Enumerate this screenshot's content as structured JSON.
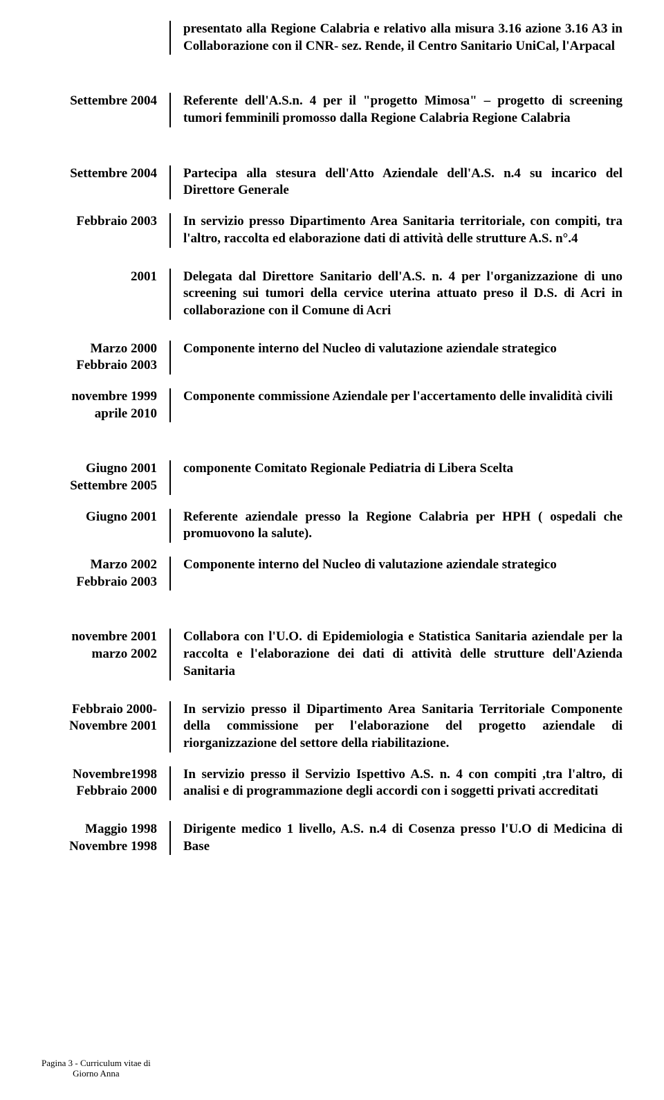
{
  "header": {
    "body": "presentato alla Regione Calabria e relativo alla misura 3.16 azione 3.16 A3 in Collaborazione con il CNR- sez. Rende, il Centro Sanitario UniCal, l'Arpacal"
  },
  "entries": [
    {
      "date": "Settembre 2004",
      "body": "Referente dell'A.S.n. 4 per il \"progetto Mimosa\" – progetto di screening tumori femminili  promosso dalla Regione Calabria Regione Calabria"
    },
    {
      "date": "Settembre 2004",
      "body": "Partecipa alla stesura dell'Atto Aziendale dell'A.S. n.4 su incarico del Direttore Generale"
    },
    {
      "date": "Febbraio 2003",
      "body": "In servizio presso Dipartimento Area Sanitaria territoriale, con compiti, tra l'altro, raccolta  ed elaborazione dati di  attività delle strutture  A.S. n°.4"
    },
    {
      "date": "2001",
      "body": "Delegata dal Direttore Sanitario dell'A.S. n. 4  per l'organizzazione di uno screening sui tumori della cervice uterina attuato preso il D.S. di Acri in collaborazione con il Comune di Acri"
    },
    {
      "date": "Marzo 2000\nFebbraio 2003",
      "body": "Componente interno del Nucleo di valutazione aziendale strategico"
    },
    {
      "date": "novembre 1999\naprile 2010",
      "body": "Componente commissione Aziendale per l'accertamento delle invalidità civili"
    },
    {
      "date": "Giugno 2001\nSettembre 2005",
      "body": "componente Comitato Regionale  Pediatria di Libera Scelta"
    },
    {
      "date": "Giugno 2001",
      "body": "Referente aziendale presso la Regione Calabria per HPH ( ospedali che promuovono la salute)."
    },
    {
      "date": "Marzo 2002\nFebbraio 2003",
      "body": "Componente interno del Nucleo di valutazione aziendale strategico"
    },
    {
      "date": "novembre 2001\nmarzo 2002",
      "body": "Collabora con l'U.O.  di Epidemiologia e Statistica Sanitaria aziendale per  la raccolta e l'elaborazione dei dati di attività delle strutture dell'Azienda Sanitaria"
    },
    {
      "date": "Febbraio 2000-\nNovembre 2001",
      "body": "In servizio presso il Dipartimento Area Sanitaria Territoriale Componente della commissione per l'elaborazione del  progetto aziendale di riorganizzazione del settore della riabilitazione."
    },
    {
      "date": "Novembre1998\nFebbraio 2000",
      "body": "In servizio presso il Servizio Ispettivo A.S. n. 4 con compiti ,tra l'altro, di analisi e di programmazione degli accordi con i soggetti privati accreditati"
    },
    {
      "date": "Maggio 1998\nNovembre 1998",
      "body": "Dirigente medico 1 livello, A.S. n.4 di Cosenza presso l'U.O di Medicina di Base"
    }
  ],
  "footer": {
    "line1": "Pagina 3 - Curriculum vitae di",
    "line2": "Giorno Anna"
  }
}
